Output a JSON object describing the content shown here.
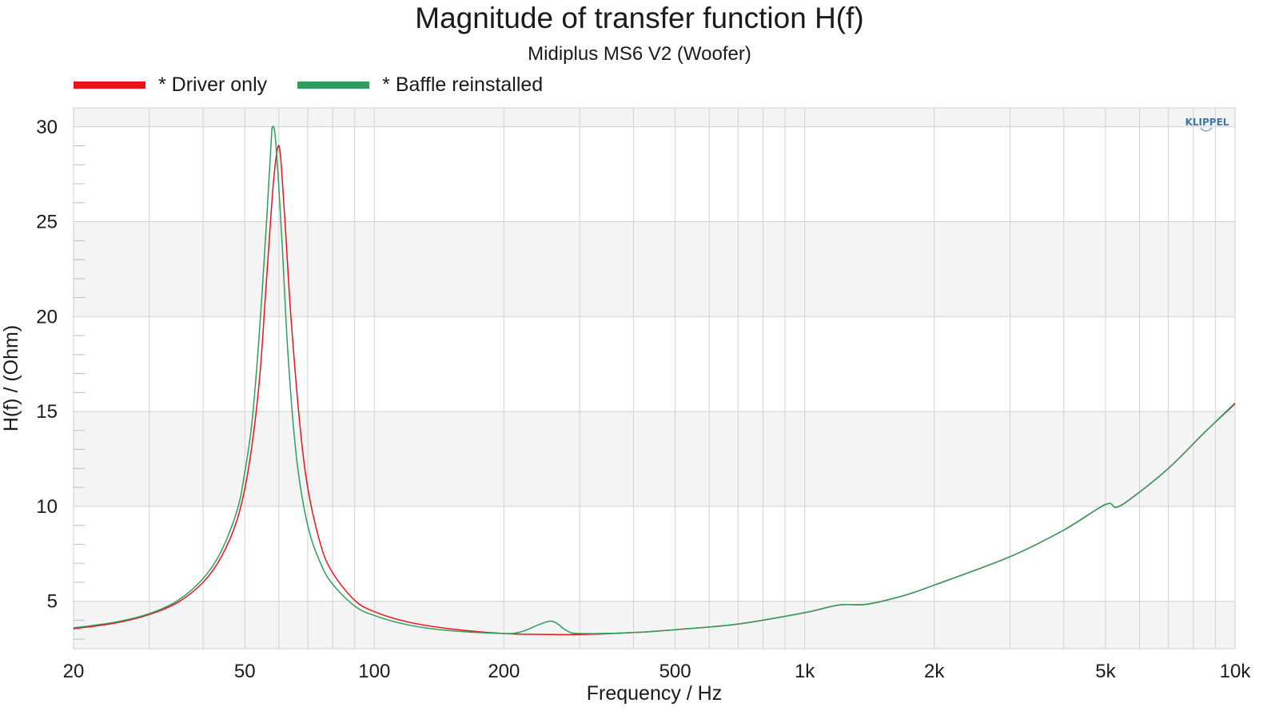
{
  "colors": {
    "driver": "#e8141c",
    "baffle": "#2e9e5e",
    "band": "#f4f4f4",
    "grid": "#d2d2d2",
    "minor_tick": "#bdbdbd"
  },
  "watermark": "KLIPPEL",
  "chart_data": {
    "type": "line",
    "title": "Magnitude of transfer function H(f)",
    "subtitle": "Midiplus MS6 V2 (Woofer)",
    "xlabel": "Frequency / Hz",
    "ylabel": "H(f) / (Ohm)",
    "xscale": "log",
    "xlim": [
      20,
      10000
    ],
    "ylim": [
      2.5,
      31
    ],
    "grid": true,
    "legend_position": "top-left",
    "x_ticks": [
      20,
      50,
      100,
      200,
      500,
      1000,
      2000,
      5000,
      10000
    ],
    "x_tick_labels": [
      "20",
      "50",
      "100",
      "200",
      "500",
      "1k",
      "2k",
      "5k",
      "10k"
    ],
    "y_ticks": [
      5,
      10,
      15,
      20,
      25,
      30
    ],
    "y_tick_labels": [
      "5",
      "10",
      "15",
      "20",
      "25",
      "30"
    ],
    "series": [
      {
        "name": "* Driver only",
        "color": "#e8141c",
        "points": [
          [
            20,
            3.55
          ],
          [
            25,
            3.85
          ],
          [
            30,
            4.3
          ],
          [
            35,
            4.95
          ],
          [
            40,
            6.0
          ],
          [
            44,
            7.3
          ],
          [
            48,
            9.3
          ],
          [
            51,
            12.0
          ],
          [
            54,
            16.5
          ],
          [
            56,
            21.5
          ],
          [
            58,
            26.5
          ],
          [
            59.5,
            28.8
          ],
          [
            60.5,
            28.5
          ],
          [
            62,
            25.0
          ],
          [
            64,
            20.0
          ],
          [
            67,
            14.5
          ],
          [
            70,
            11.0
          ],
          [
            75,
            8.0
          ],
          [
            80,
            6.5
          ],
          [
            90,
            5.05
          ],
          [
            100,
            4.45
          ],
          [
            120,
            3.9
          ],
          [
            150,
            3.55
          ],
          [
            200,
            3.3
          ],
          [
            260,
            3.25
          ],
          [
            300,
            3.25
          ],
          [
            400,
            3.35
          ],
          [
            500,
            3.5
          ],
          [
            700,
            3.8
          ],
          [
            1000,
            4.4
          ],
          [
            1200,
            4.8
          ],
          [
            1400,
            4.85
          ],
          [
            1700,
            5.3
          ],
          [
            2000,
            5.85
          ],
          [
            3000,
            7.35
          ],
          [
            4000,
            8.75
          ],
          [
            5000,
            10.1
          ],
          [
            5300,
            9.95
          ],
          [
            5800,
            10.5
          ],
          [
            7000,
            12.0
          ],
          [
            8500,
            13.9
          ],
          [
            10000,
            15.4
          ]
        ]
      },
      {
        "name": "* Baffle reinstalled",
        "color": "#2e9e5e",
        "points": [
          [
            20,
            3.6
          ],
          [
            25,
            3.9
          ],
          [
            30,
            4.35
          ],
          [
            35,
            5.05
          ],
          [
            40,
            6.2
          ],
          [
            44,
            7.6
          ],
          [
            48,
            9.8
          ],
          [
            50,
            11.8
          ],
          [
            52,
            14.5
          ],
          [
            54,
            19.0
          ],
          [
            56,
            24.5
          ],
          [
            57.5,
            29.0
          ],
          [
            58,
            30.0
          ],
          [
            59,
            29.2
          ],
          [
            61,
            24.0
          ],
          [
            63,
            18.0
          ],
          [
            66,
            12.5
          ],
          [
            70,
            9.0
          ],
          [
            75,
            7.0
          ],
          [
            80,
            5.9
          ],
          [
            90,
            4.75
          ],
          [
            100,
            4.25
          ],
          [
            120,
            3.75
          ],
          [
            150,
            3.45
          ],
          [
            200,
            3.3
          ],
          [
            220,
            3.4
          ],
          [
            240,
            3.75
          ],
          [
            255,
            3.95
          ],
          [
            265,
            3.85
          ],
          [
            280,
            3.45
          ],
          [
            300,
            3.3
          ],
          [
            400,
            3.35
          ],
          [
            500,
            3.5
          ],
          [
            700,
            3.8
          ],
          [
            1000,
            4.4
          ],
          [
            1200,
            4.8
          ],
          [
            1400,
            4.85
          ],
          [
            1700,
            5.3
          ],
          [
            2000,
            5.85
          ],
          [
            3000,
            7.35
          ],
          [
            4000,
            8.75
          ],
          [
            5000,
            10.1
          ],
          [
            5300,
            9.95
          ],
          [
            5800,
            10.5
          ],
          [
            7000,
            12.0
          ],
          [
            8500,
            13.9
          ],
          [
            10000,
            15.45
          ]
        ]
      }
    ]
  }
}
